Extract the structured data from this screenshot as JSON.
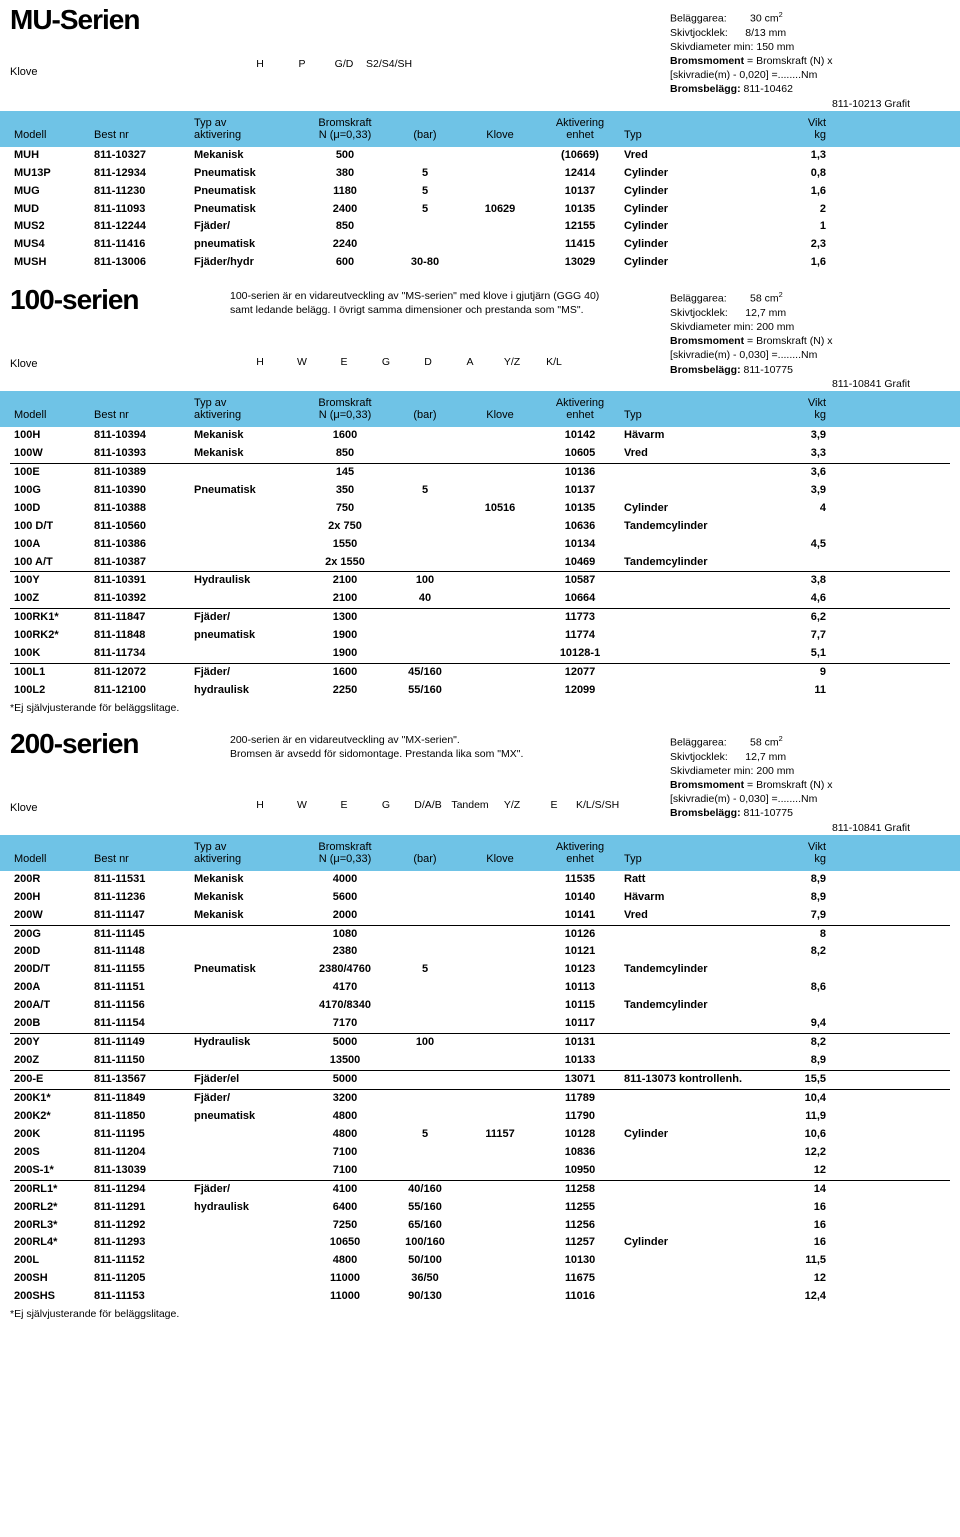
{
  "header_bg": "#6fc3e6",
  "mu": {
    "title": "MU-Serien",
    "klove_label": "Klove",
    "actuators": [
      "H",
      "P",
      "G/D",
      "S2/S4/SH"
    ],
    "spec": {
      "l1": "Beläggarea:",
      "v1": "30 cm",
      "sup1": "2",
      "l2": "Skivtjocklek:",
      "v2": "8/13 mm",
      "l3": "Skivdiameter min: 150 mm",
      "l4a": "Bromsmoment",
      "l4b": " = Bromskraft (N) x",
      "l5": "[skivradie(m) - 0,020] =........Nm",
      "l6a": "Bromsbelägg:",
      "l6b": " 811-10462",
      "l7": "811-10213 Grafit"
    },
    "cols": {
      "modell": "Modell",
      "bestnr": "Best nr",
      "typav": "Typ av",
      "akt": "aktivering",
      "bromsk": "Bromskraft",
      "nmu": "N (μ=0,33)",
      "bar": "(bar)",
      "klove": "Klove",
      "aktiv": "Aktivering",
      "enh": "enhet",
      "typ": "Typ",
      "vikt": "Vikt",
      "kg": "kg"
    },
    "rows": [
      [
        "MUH",
        "811-10327",
        "Mekanisk",
        "500",
        "",
        "",
        "(10669)",
        "Vred",
        "1,3"
      ],
      [
        "MU13P",
        "811-12934",
        "Pneumatisk",
        "380",
        "5",
        "",
        "12414",
        "Cylinder",
        "0,8"
      ],
      [
        "MUG",
        "811-11230",
        "Pneumatisk",
        "1180",
        "5",
        "",
        "10137",
        "Cylinder",
        "1,6"
      ],
      [
        "MUD",
        "811-11093",
        "Pneumatisk",
        "2400",
        "5",
        "10629",
        "10135",
        "Cylinder",
        "2"
      ],
      [
        "MUS2",
        "811-12244",
        "Fjäder/",
        "850",
        "",
        "",
        "12155",
        "Cylinder",
        "1"
      ],
      [
        "MUS4",
        "811-11416",
        "pneumatisk",
        "2240",
        "",
        "",
        "11415",
        "Cylinder",
        "2,3"
      ],
      [
        "MUSH",
        "811-13006",
        "Fjäder/hydr",
        "600",
        "30-80",
        "",
        "13029",
        "Cylinder",
        "1,6"
      ]
    ]
  },
  "s100": {
    "title": "100-serien",
    "desc1": "100-serien är en vidareutveckling av \"MS-serien\" med klove i gjutjärn (GGG 40)",
    "desc2": "samt ledande belägg. I övrigt samma dimensioner och prestanda som \"MS\".",
    "klove_label": "Klove",
    "actuators": [
      "H",
      "W",
      "E",
      "G",
      "D",
      "A",
      "Y/Z",
      "K/L"
    ],
    "spec": {
      "l1": "Beläggarea:",
      "v1": "58 cm",
      "sup1": "2",
      "l2": "Skivtjocklek:",
      "v2": "12,7 mm",
      "l3": "Skivdiameter min: 200 mm",
      "l4a": "Bromsmoment",
      "l4b": " = Bromskraft (N) x",
      "l5": "[skivradie(m) - 0,030] =........Nm",
      "l6a": "Bromsbelägg:",
      "l6b": " 811-10775",
      "l7": "811-10841 Grafit"
    },
    "rows": [
      [
        "100H",
        "811-10394",
        "Mekanisk",
        "1600",
        "",
        "",
        "10142",
        "Hävarm",
        "3,9",
        false
      ],
      [
        "100W",
        "811-10393",
        "Mekanisk",
        "850",
        "",
        "",
        "10605",
        "Vred",
        "3,3",
        false
      ],
      [
        "100E",
        "811-10389",
        "",
        "145",
        "",
        "",
        "10136",
        "",
        "3,6",
        true
      ],
      [
        "100G",
        "811-10390",
        "Pneumatisk",
        "350",
        "5",
        "",
        "10137",
        "",
        "3,9",
        false
      ],
      [
        "100D",
        "811-10388",
        "",
        "750",
        "",
        "10516",
        "10135",
        "Cylinder",
        "4",
        false
      ],
      [
        "100 D/T",
        "811-10560",
        "",
        "2x  750",
        "",
        "",
        "10636",
        "Tandemcylinder",
        "",
        false
      ],
      [
        "100A",
        "811-10386",
        "",
        "1550",
        "",
        "",
        "10134",
        "",
        "4,5",
        false
      ],
      [
        "100 A/T",
        "811-10387",
        "",
        "2x 1550",
        "",
        "",
        "10469",
        "Tandemcylinder",
        "",
        false
      ],
      [
        "100Y",
        "811-10391",
        "Hydraulisk",
        "2100",
        "100",
        "",
        "10587",
        "",
        "3,8",
        true
      ],
      [
        "100Z",
        "811-10392",
        "",
        "2100",
        "40",
        "",
        "10664",
        "",
        "4,6",
        false
      ],
      [
        "100RK1*",
        "811-11847",
        "Fjäder/",
        "1300",
        "",
        "",
        "11773",
        "",
        "6,2",
        true
      ],
      [
        "100RK2*",
        "811-11848",
        "pneumatisk",
        "1900",
        "",
        "",
        "11774",
        "",
        "7,7",
        false
      ],
      [
        "100K",
        "811-11734",
        "",
        "1900",
        "",
        "",
        "10128-1",
        "",
        "5,1",
        false
      ],
      [
        "100L1",
        "811-12072",
        "Fjäder/",
        "1600",
        "45/160",
        "",
        "12077",
        "",
        "9",
        true
      ],
      [
        "100L2",
        "811-12100",
        "hydraulisk",
        "2250",
        "55/160",
        "",
        "12099",
        "",
        "11",
        false
      ]
    ],
    "footnote": "*Ej självjusterande för beläggslitage."
  },
  "s200": {
    "title": "200-serien",
    "desc1": "200-serien är en vidareutveckling av \"MX-serien\".",
    "desc2": "Bromsen är avsedd för sidomontage. Prestanda lika som \"MX\".",
    "klove_label": "Klove",
    "actuators": [
      "H",
      "W",
      "E",
      "G",
      "D/A/B",
      "Tandem",
      "Y/Z",
      "E",
      "K/L/S/SH"
    ],
    "spec": {
      "l1": "Beläggarea:",
      "v1": "58 cm",
      "sup1": "2",
      "l2": "Skivtjocklek:",
      "v2": "12,7 mm",
      "l3": "Skivdiameter min: 200 mm",
      "l4a": "Bromsmoment",
      "l4b": " = Bromskraft (N) x",
      "l5": "[skivradie(m) - 0,030] =........Nm",
      "l6a": "Bromsbelägg:",
      "l6b": " 811-10775",
      "l7": "811-10841 Grafit"
    },
    "rows": [
      [
        "200R",
        "811-11531",
        "Mekanisk",
        "4000",
        "",
        "",
        "11535",
        "Ratt",
        "8,9",
        false
      ],
      [
        "200H",
        "811-11236",
        "Mekanisk",
        "5600",
        "",
        "",
        "10140",
        "Hävarm",
        "8,9",
        false
      ],
      [
        "200W",
        "811-11147",
        "Mekanisk",
        "2000",
        "",
        "",
        "10141",
        "Vred",
        "7,9",
        false
      ],
      [
        "200G",
        "811-11145",
        "",
        "1080",
        "",
        "",
        "10126",
        "",
        "8",
        true
      ],
      [
        "200D",
        "811-11148",
        "",
        "2380",
        "",
        "",
        "10121",
        "",
        "8,2",
        false
      ],
      [
        "200D/T",
        "811-11155",
        "Pneumatisk",
        "2380/4760",
        "5",
        "",
        "10123",
        "Tandemcylinder",
        "",
        false
      ],
      [
        "200A",
        "811-11151",
        "",
        "4170",
        "",
        "",
        "10113",
        "",
        "8,6",
        false
      ],
      [
        "200A/T",
        "811-11156",
        "",
        "4170/8340",
        "",
        "",
        "10115",
        "Tandemcylinder",
        "",
        false
      ],
      [
        "200B",
        "811-11154",
        "",
        "7170",
        "",
        "",
        "10117",
        "",
        "9,4",
        false
      ],
      [
        "200Y",
        "811-11149",
        "Hydraulisk",
        "5000",
        "100",
        "",
        "10131",
        "",
        "8,2",
        true
      ],
      [
        "200Z",
        "811-11150",
        "",
        "13500",
        "",
        "",
        "10133",
        "",
        "8,9",
        false
      ],
      [
        "200-E",
        "811-13567",
        "Fjäder/el",
        "5000",
        "",
        "",
        "13071",
        "811-13073 kontrollenh.",
        "15,5",
        true
      ],
      [
        "200K1*",
        "811-11849",
        "Fjäder/",
        "3200",
        "",
        "",
        "11789",
        "",
        "10,4",
        true
      ],
      [
        "200K2*",
        "811-11850",
        "pneumatisk",
        "4800",
        "",
        "",
        "11790",
        "",
        "11,9",
        false
      ],
      [
        "200K",
        "811-11195",
        "",
        "4800",
        "5",
        "11157",
        "10128",
        "Cylinder",
        "10,6",
        false
      ],
      [
        "200S",
        "811-11204",
        "",
        "7100",
        "",
        "",
        "10836",
        "",
        "12,2",
        false
      ],
      [
        "200S-1*",
        "811-13039",
        "",
        "7100",
        "",
        "",
        "10950",
        "",
        "12",
        false
      ],
      [
        "200RL1*",
        "811-11294",
        "Fjäder/",
        "4100",
        "40/160",
        "",
        "11258",
        "",
        "14",
        true
      ],
      [
        "200RL2*",
        "811-11291",
        "hydraulisk",
        "6400",
        "55/160",
        "",
        "11255",
        "",
        "16",
        false
      ],
      [
        "200RL3*",
        "811-11292",
        "",
        "7250",
        "65/160",
        "",
        "11256",
        "",
        "16",
        false
      ],
      [
        "200RL4*",
        "811-11293",
        "",
        "10650",
        "100/160",
        "",
        "11257",
        "Cylinder",
        "16",
        false
      ],
      [
        "200L",
        "811-11152",
        "",
        "4800",
        "50/100",
        "",
        "10130",
        "",
        "11,5",
        false
      ],
      [
        "200SH",
        "811-11205",
        "",
        "11000",
        "36/50",
        "",
        "11675",
        "",
        "12",
        false
      ],
      [
        "200SHS",
        "811-11153",
        "",
        "11000",
        "90/130",
        "",
        "11016",
        "",
        "12,4",
        false
      ]
    ],
    "footnote": "*Ej självjusterande för beläggslitage."
  }
}
